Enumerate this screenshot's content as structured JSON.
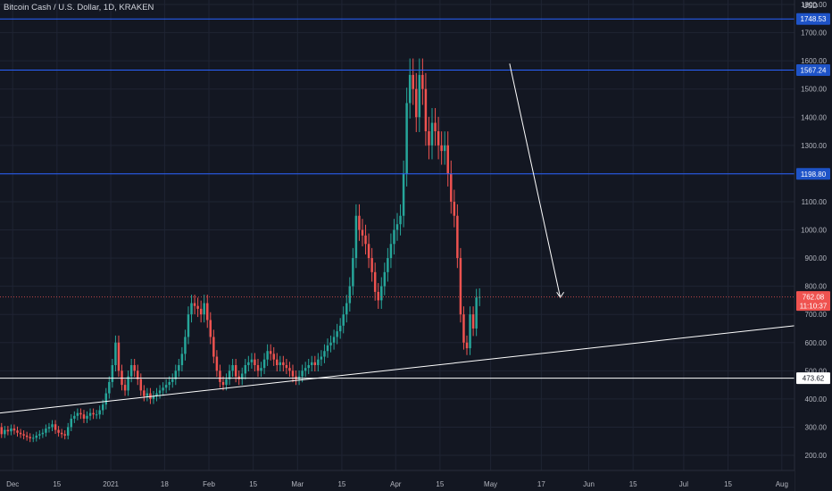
{
  "symbol": {
    "title": "Bitcoin Cash / U.S. Dollar, 1D, KRAKEN",
    "currency": "USD"
  },
  "colors": {
    "background": "#131722",
    "grid": "#1f2433",
    "up": "#26a69a",
    "down": "#ef5350",
    "hline_blue": "#2962ff",
    "hline_white": "#ffffff",
    "axis_text": "#b2b5be",
    "blue_label": "#1e53c7"
  },
  "chart_data": {
    "type": "candlestick",
    "timeframe": "1D",
    "exchange": "KRAKEN",
    "x_date_range": [
      "2020-11-27",
      "2021-08-05"
    ],
    "ylim": [
      150,
      1800
    ],
    "y_ticks": [
      200,
      300,
      400,
      500,
      600,
      700,
      800,
      900,
      1000,
      1100,
      1200,
      1300,
      1400,
      1500,
      1600,
      1700,
      1800
    ],
    "y_tick_labels": [
      "200.00",
      "300.00",
      "400.00",
      "500.00",
      "600.00",
      "700.00",
      "800.00",
      "900.00",
      "1000.00",
      "1100.00",
      "1200.00",
      "1300.00",
      "1400.00",
      "1500.00",
      "1600.00",
      "1700.00",
      "1800.00"
    ],
    "x_ticks": [
      {
        "date": "2020-12-01",
        "label": "Dec"
      },
      {
        "date": "2020-12-15",
        "label": "15"
      },
      {
        "date": "2021-01-01",
        "label": "2021"
      },
      {
        "date": "2021-01-18",
        "label": "18"
      },
      {
        "date": "2021-02-01",
        "label": "Feb"
      },
      {
        "date": "2021-02-15",
        "label": "15"
      },
      {
        "date": "2021-03-01",
        "label": "Mar"
      },
      {
        "date": "2021-03-15",
        "label": "15"
      },
      {
        "date": "2021-04-01",
        "label": "Apr"
      },
      {
        "date": "2021-04-15",
        "label": "15"
      },
      {
        "date": "2021-05-01",
        "label": "May"
      },
      {
        "date": "2021-05-17",
        "label": "17"
      },
      {
        "date": "2021-06-01",
        "label": "Jun"
      },
      {
        "date": "2021-06-15",
        "label": "15"
      },
      {
        "date": "2021-07-01",
        "label": "Jul"
      },
      {
        "date": "2021-07-15",
        "label": "15"
      },
      {
        "date": "2021-08-01",
        "label": "Aug"
      }
    ],
    "price_series": {
      "start_date": "2020-11-27",
      "start_open": 300,
      "closes": [
        275,
        290,
        285,
        295,
        288,
        280,
        275,
        270,
        265,
        260,
        262,
        270,
        275,
        280,
        295,
        300,
        310,
        290,
        280,
        275,
        270,
        300,
        330,
        340,
        350,
        345,
        330,
        340,
        350,
        345,
        345,
        360,
        380,
        420,
        460,
        520,
        600,
        500,
        450,
        430,
        480,
        520,
        500,
        470,
        430,
        410,
        420,
        400,
        410,
        420,
        430,
        440,
        450,
        460,
        470,
        500,
        520,
        560,
        620,
        700,
        740,
        730,
        720,
        700,
        740,
        680,
        620,
        550,
        500,
        460,
        450,
        470,
        500,
        520,
        480,
        470,
        490,
        520,
        530,
        540,
        520,
        500,
        510,
        540,
        570,
        560,
        540,
        520,
        530,
        520,
        510,
        500,
        480,
        470,
        480,
        500,
        510,
        520,
        530,
        520,
        540,
        550,
        570,
        590,
        600,
        620,
        640,
        660,
        700,
        740,
        800,
        900,
        1050,
        1000,
        980,
        950,
        900,
        850,
        780,
        750,
        800,
        850,
        900,
        950,
        1000,
        1020,
        1050,
        1200,
        1450,
        1550,
        1500,
        1400,
        1550,
        1500,
        1350,
        1300,
        1380,
        1350,
        1300,
        1280,
        1300,
        1200,
        1100,
        1050,
        900,
        700,
        600,
        580,
        700,
        650,
        760,
        762
      ]
    },
    "drawings": {
      "horizontal_levels": [
        {
          "value": 1748.53,
          "label": "1748.53",
          "style": "blue"
        },
        {
          "value": 1567.24,
          "label": "1567.24",
          "style": "blue"
        },
        {
          "value": 1198.8,
          "label": "1198.80",
          "style": "blue"
        },
        {
          "value": 473.62,
          "label": "473.62",
          "style": "white"
        }
      ],
      "trendlines": [
        {
          "from": {
            "date": "2020-11-27",
            "value": 350
          },
          "to": {
            "date": "2021-08-05",
            "value": 660
          },
          "color": "white"
        },
        {
          "from": {
            "date": "2021-05-07",
            "value": 1590
          },
          "to": {
            "date": "2021-05-23",
            "value": 760
          },
          "color": "white",
          "arrow": true
        }
      ]
    },
    "last_price": {
      "value": 762.08,
      "label": "762.08",
      "countdown": "11:10:37"
    }
  }
}
